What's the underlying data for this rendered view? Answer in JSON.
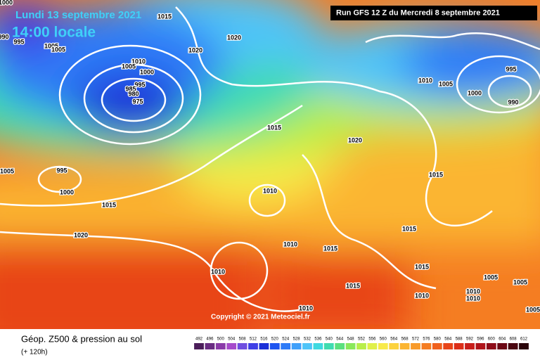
{
  "header": {
    "date": "Lundi 13 septembre 2021",
    "time": "14:00 locale",
    "run": "Run GFS 12 Z du Mercredi 8 septembre 2021"
  },
  "copyright": "Copyright © 2021 Meteociel.fr",
  "footer": {
    "title": "Géop. Z500 & pression au sol",
    "subtitle": "(+ 120h)"
  },
  "isobar_labels": [
    "1000",
    "990",
    "995",
    "1005",
    "1005",
    "1015",
    "1020",
    "1020",
    "1010",
    "1005",
    "1000",
    "995",
    "985",
    "980",
    "975",
    "1015",
    "1020",
    "1005",
    "995",
    "1000",
    "1015",
    "1010",
    "1020",
    "1010",
    "1015",
    "1015",
    "1015",
    "1010",
    "1005",
    "995",
    "1000",
    "990",
    "1010",
    "1015",
    "1015",
    "1010",
    "1005",
    "1005",
    "1010",
    "1010",
    "1010",
    "1005"
  ],
  "colorbar": {
    "levels": [
      492,
      496,
      500,
      504,
      508,
      512,
      516,
      520,
      524,
      528,
      532,
      536,
      540,
      544,
      548,
      552,
      556,
      560,
      564,
      568,
      572,
      576,
      580,
      584,
      588,
      592,
      596,
      600,
      604,
      608,
      612
    ],
    "colors": [
      "#4b1d5a",
      "#6a2c82",
      "#8a3aa8",
      "#a64bcb",
      "#6f4ee0",
      "#3f3fe6",
      "#1a2fd8",
      "#1f55f0",
      "#2e7bf7",
      "#40a0fa",
      "#4fc4f8",
      "#3fd9e0",
      "#3fdcb0",
      "#5be07e",
      "#8ae85a",
      "#b8ee4a",
      "#e0f04a",
      "#f8ea4a",
      "#fcd23e",
      "#fbb532",
      "#f89a2a",
      "#f57d22",
      "#f0601c",
      "#e84418",
      "#dc2e18",
      "#c81e1a",
      "#b0141a",
      "#8e0c18",
      "#6c0814",
      "#4a0610",
      "#2a040a"
    ]
  }
}
